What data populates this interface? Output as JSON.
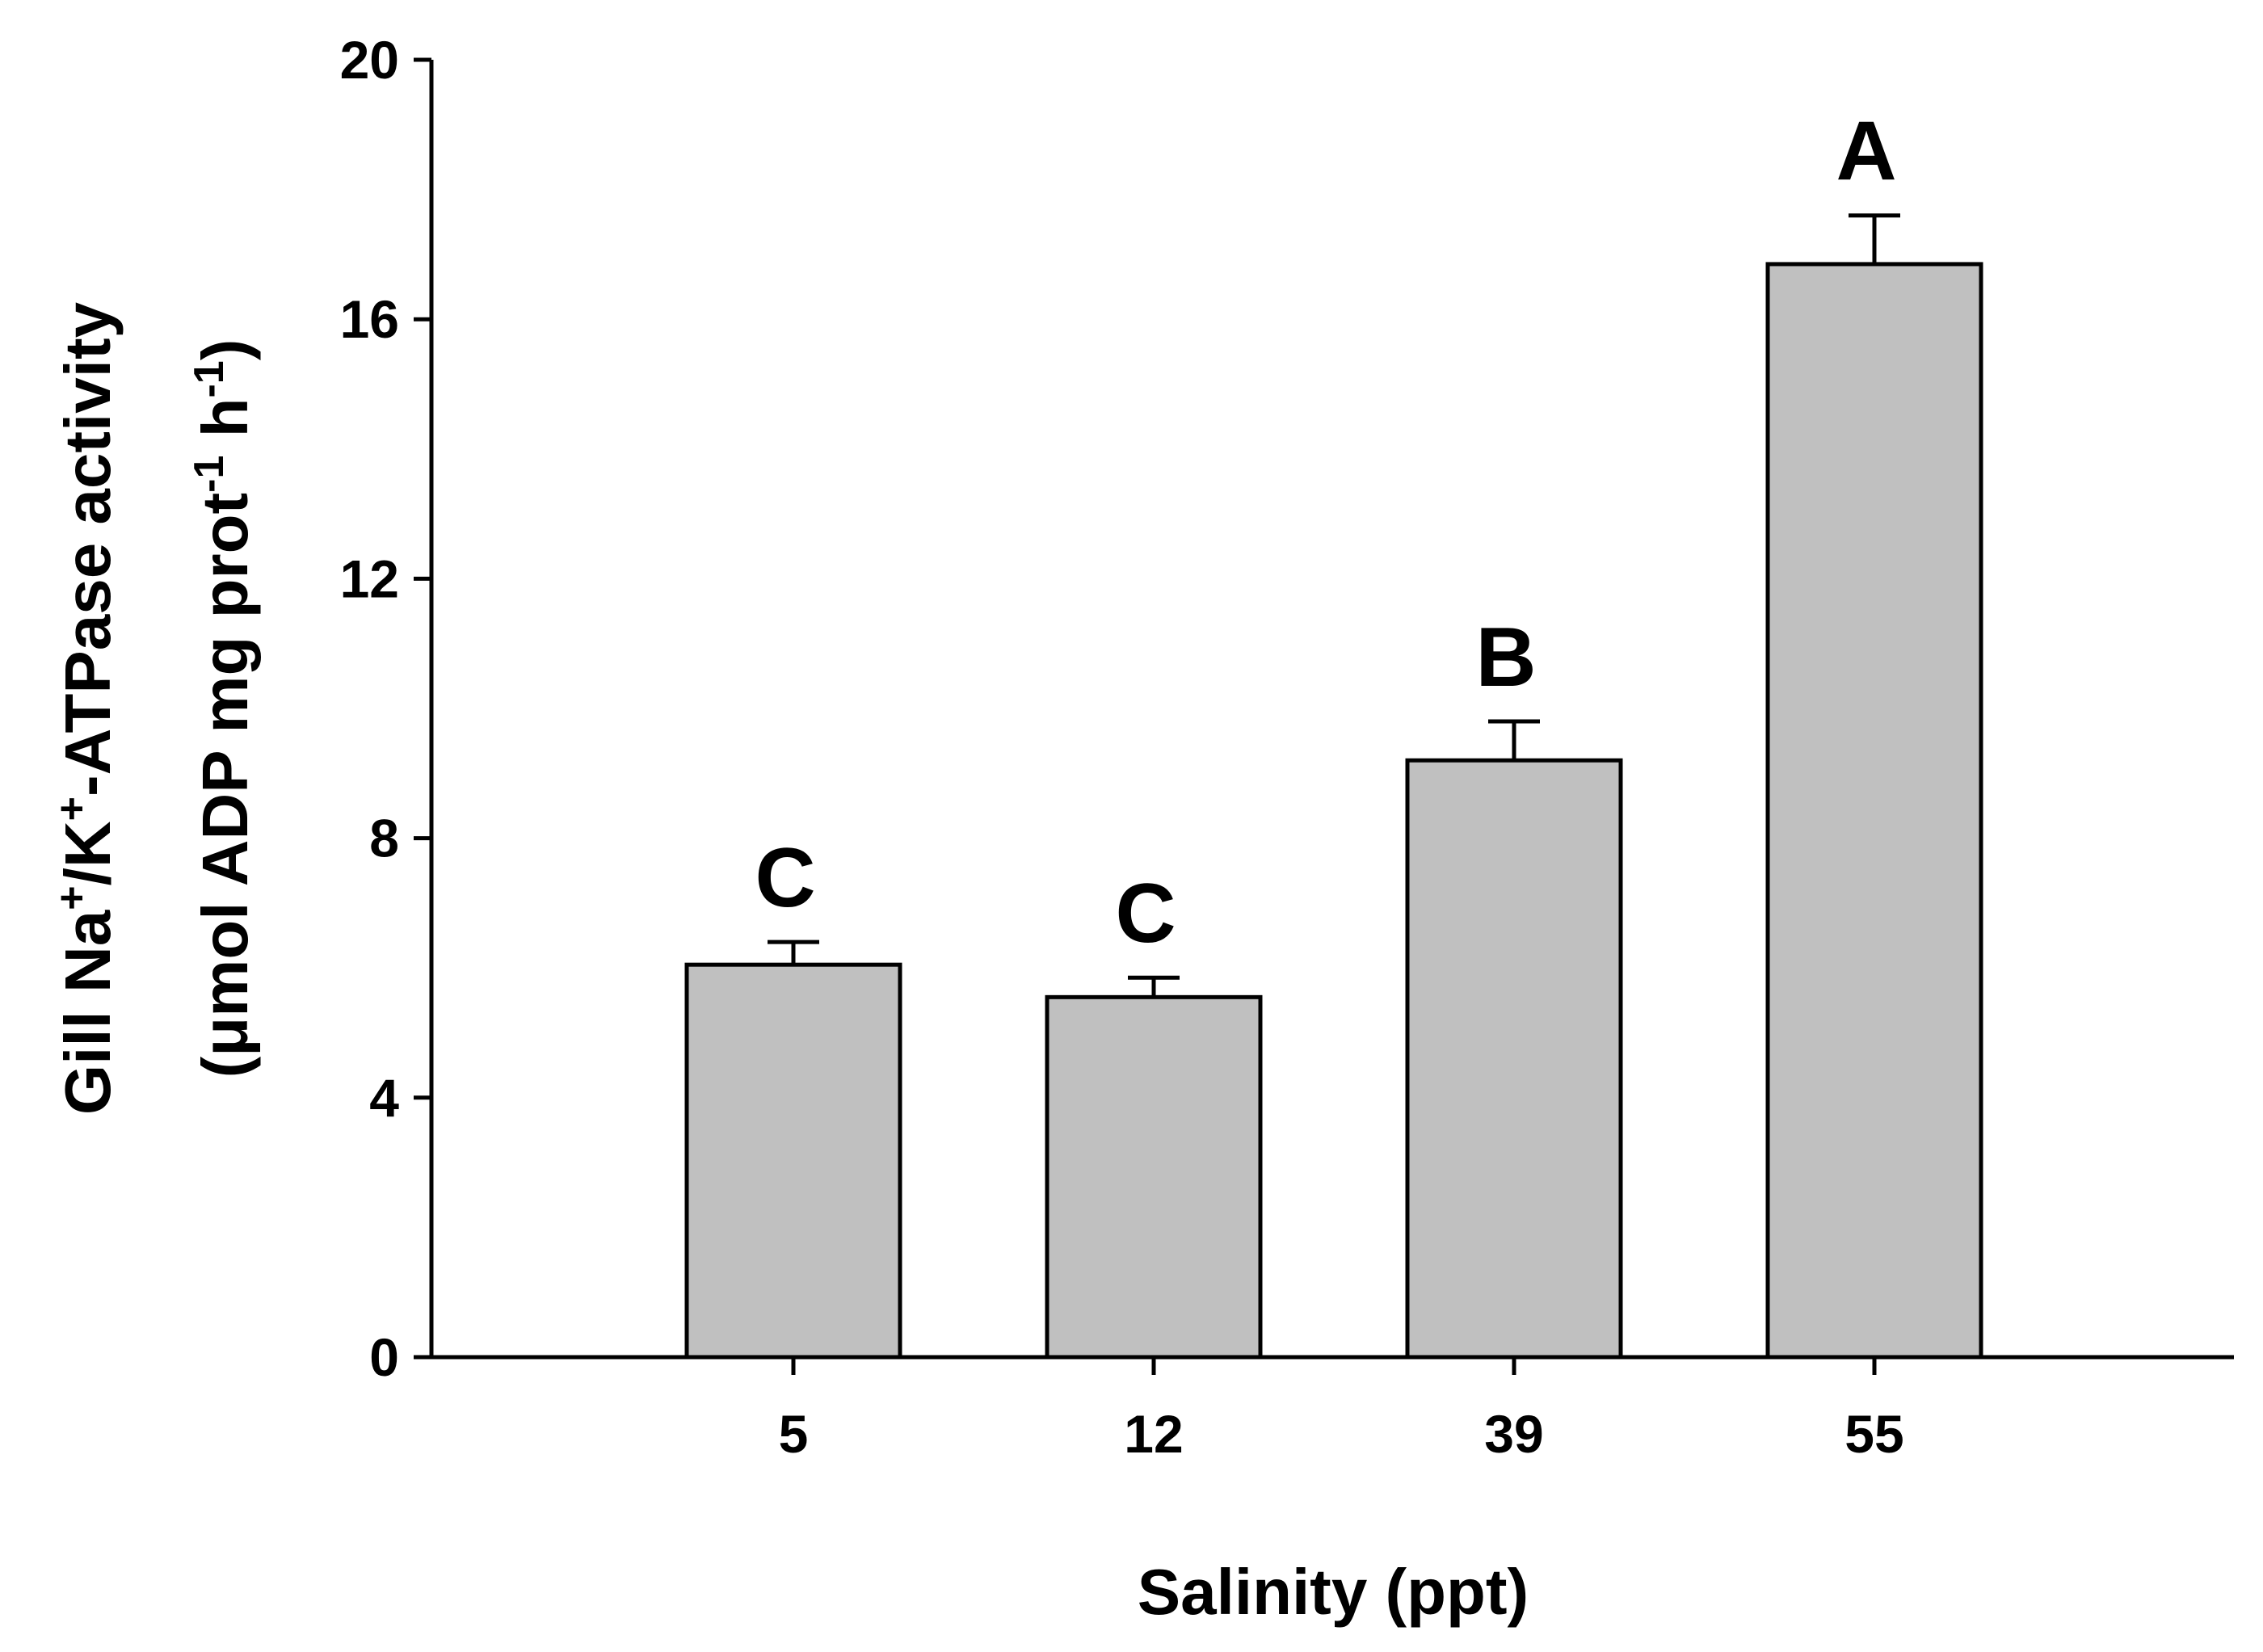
{
  "chart_data": {
    "type": "bar",
    "title": "",
    "xlabel": "Salinity (ppt)",
    "ylabel": {
      "line1": {
        "p1": "Gill Na",
        "sup1": "+",
        "p2": "/K",
        "sup2": "+",
        "p3": "-ATPase activity"
      },
      "line2": {
        "p1": "(μmol ADP mg prot",
        "sup1": "-1",
        "p2": " h",
        "sup2": "-1",
        "p3": ")"
      }
    },
    "categories": [
      "5",
      "12",
      "39",
      "55"
    ],
    "values": [
      6.05,
      5.55,
      9.2,
      16.85
    ],
    "errors": [
      0.35,
      0.3,
      0.6,
      0.75
    ],
    "significance": [
      "C",
      "C",
      "B",
      "A"
    ],
    "ylim": [
      0,
      20
    ],
    "yticks": [
      "0",
      "4",
      "8",
      "12",
      "16",
      "20"
    ],
    "bar_color": "#c0c0c0",
    "grid": false,
    "legend": "none"
  }
}
